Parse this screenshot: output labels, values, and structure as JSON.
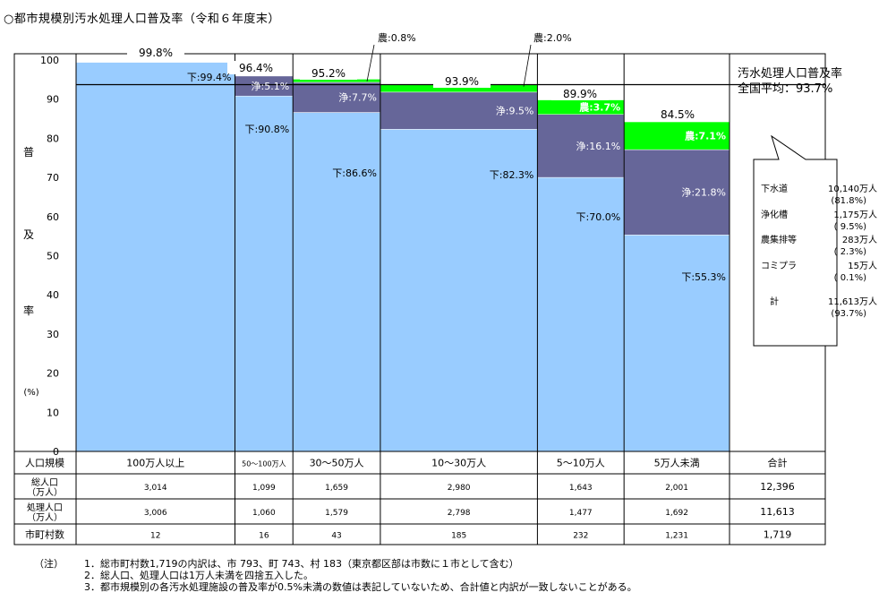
{
  "page_title": "○都市規模別汚水処理人口普及率（令和６年度末）",
  "chart_data": {
    "type": "bar",
    "title": "○都市規模別汚水処理人口普及率（令和６年度末）",
    "ylabel_chars": [
      "普",
      "及",
      "率"
    ],
    "ylabel_unit": "(%)",
    "ylim": [
      0,
      100
    ],
    "yticks": [
      0,
      10,
      20,
      30,
      40,
      50,
      60,
      70,
      80,
      90,
      100
    ],
    "categories": [
      "100万人以上",
      "50～100万人",
      "30～50万人",
      "10～30万人",
      "5～10万人",
      "5万人未満"
    ],
    "widths": [
      3014,
      1099,
      1659,
      2980,
      1643,
      2001
    ],
    "series": [
      {
        "name": "下水道",
        "color": "#99ccff",
        "values": [
          99.4,
          90.8,
          86.6,
          82.3,
          70.0,
          55.3
        ],
        "labels": [
          "下:99.4%",
          "下:90.8%",
          "下:86.6%",
          "下:82.3%",
          "下:70.0%",
          "下:55.3%"
        ]
      },
      {
        "name": "浄化槽",
        "color": "#666699",
        "values": [
          0,
          5.1,
          7.7,
          9.5,
          16.1,
          21.8
        ],
        "labels": [
          "",
          "浄:5.1%",
          "浄:7.7%",
          "浄:9.5%",
          "浄:16.1%",
          "浄:21.8%"
        ]
      },
      {
        "name": "農集排等",
        "color": "#00ff00",
        "values": [
          0,
          0,
          0.8,
          2.0,
          3.7,
          7.1
        ],
        "labels": [
          "",
          "",
          "",
          "",
          "農:3.7%",
          "農:7.1%"
        ]
      }
    ],
    "totals": [
      "99.8%",
      "96.4%",
      "95.2%",
      "93.9%",
      "89.9%",
      "84.5%"
    ],
    "callouts": [
      "農:0.8%",
      "農:2.0%"
    ],
    "national_average": 93.7,
    "national_title": "汚水処理人口普及率",
    "national_label": "全国平均：93.7%",
    "summary_box": [
      {
        "name": "下水道",
        "value": "10,140万人",
        "pct": "(81.8%)"
      },
      {
        "name": "浄化槽",
        "value": "1,175万人",
        "pct": "( 9.5%)"
      },
      {
        "name": "農集排等",
        "value": "283万人",
        "pct": "( 2.3%)"
      },
      {
        "name": "コミプラ",
        "value": "15万人",
        "pct": "( 0.1%)"
      },
      {
        "name": "計",
        "value": "11,613万人",
        "pct": "(93.7%)"
      }
    ]
  },
  "table": {
    "rows": [
      {
        "label": [
          "人口規模"
        ],
        "cells": [
          "100万人以上",
          "50～100万人",
          "30～50万人",
          "10～30万人",
          "5～10万人",
          "5万人未満"
        ],
        "total": "合計"
      },
      {
        "label": [
          "総人口",
          "（万人）"
        ],
        "cells": [
          "3,014",
          "1,099",
          "1,659",
          "2,980",
          "1,643",
          "2,001"
        ],
        "total": "12,396"
      },
      {
        "label": [
          "処理人口",
          "（万人）"
        ],
        "cells": [
          "3,006",
          "1,060",
          "1,579",
          "2,798",
          "1,477",
          "1,692"
        ],
        "total": "11,613"
      },
      {
        "label": [
          "市町村数"
        ],
        "cells": [
          "12",
          "16",
          "43",
          "185",
          "232",
          "1,231"
        ],
        "total": "1,719"
      }
    ]
  },
  "notes": {
    "label": "（注）",
    "items": [
      {
        "num": "1．",
        "text": "総市町村数1,719の内訳は、市 793、町 743、村 183（東京都区部は市数に１市として含む）"
      },
      {
        "num": "2．",
        "text": "総人口、処理人口は1万人未満を四捨五入した。"
      },
      {
        "num": "3．",
        "text": "都市規模別の各汚水処理施設の普及率が0.5%未満の数値は表記していないため、合計値と内訳が一致しないことがある。"
      }
    ]
  }
}
